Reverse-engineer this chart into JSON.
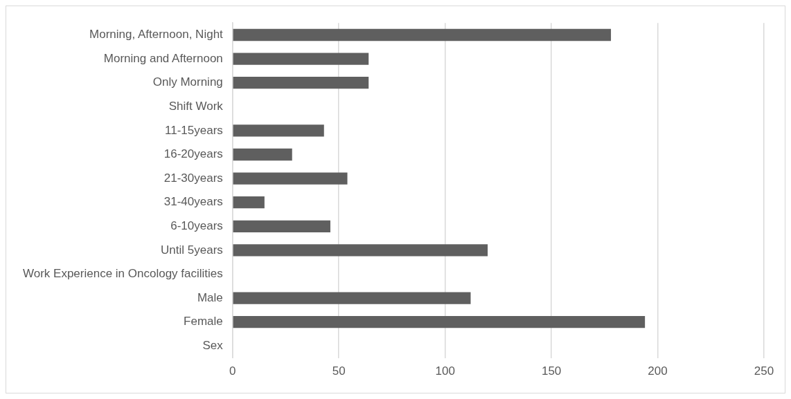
{
  "chart_data": {
    "type": "bar",
    "orientation": "horizontal",
    "categories": [
      "Morning, Afternoon, Night",
      "Morning and Afternoon",
      "Only Morning",
      "Shift Work",
      "11-15years",
      "16-20years",
      "21-30years",
      "31-40years",
      "6-10years",
      "Until 5years",
      "Work Experience in Oncology facilities",
      "Male",
      "Female",
      "Sex"
    ],
    "values": [
      178,
      64,
      64,
      null,
      43,
      28,
      54,
      15,
      46,
      120,
      null,
      112,
      194,
      null
    ],
    "color": "#5f5f5f",
    "xlim": [
      0,
      250
    ],
    "xticks": [
      0,
      50,
      100,
      150,
      200,
      250
    ],
    "grid": "x",
    "legend": false
  }
}
